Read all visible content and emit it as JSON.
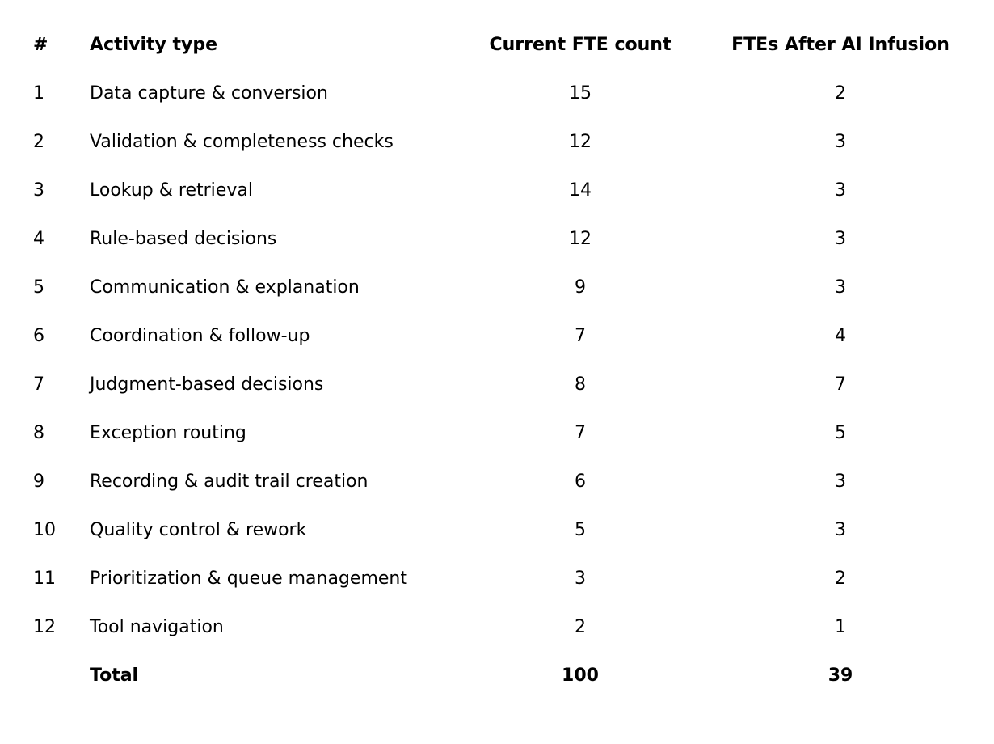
{
  "colors": {
    "text": "#000000",
    "background": "#ffffff"
  },
  "chart_data": {
    "type": "table",
    "title": "",
    "columns": [
      "#",
      "Activity type",
      "Current FTE count",
      "FTEs After AI Infusion"
    ],
    "rows": [
      [
        "1",
        "Data capture & conversion",
        "15",
        "2"
      ],
      [
        "2",
        "Validation & completeness checks",
        "12",
        "3"
      ],
      [
        "3",
        "Lookup & retrieval",
        "14",
        "3"
      ],
      [
        "4",
        "Rule-based decisions",
        "12",
        "3"
      ],
      [
        "5",
        "Communication & explanation",
        "9",
        "3"
      ],
      [
        "6",
        "Coordination & follow-up",
        "7",
        "4"
      ],
      [
        "7",
        "Judgment-based decisions",
        "8",
        "7"
      ],
      [
        "8",
        "Exception routing",
        "7",
        "5"
      ],
      [
        "9",
        "Recording & audit trail creation",
        "6",
        "3"
      ],
      [
        "10",
        "Quality control & rework",
        "5",
        "3"
      ],
      [
        "11",
        "Prioritization & queue management",
        "3",
        "2"
      ],
      [
        "12",
        "Tool navigation",
        "2",
        "1"
      ]
    ],
    "total_row": [
      "",
      "Total",
      "100",
      "39"
    ],
    "layout": {
      "grid": "off",
      "borders": "none",
      "header_style": "bold",
      "total_style": "bold",
      "numeric_alignment": "center"
    }
  }
}
